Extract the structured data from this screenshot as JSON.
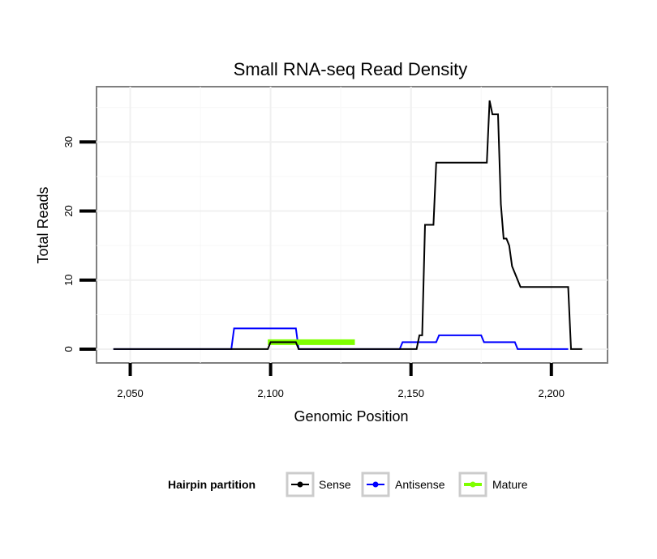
{
  "chart_data": {
    "type": "line",
    "title": "Small RNA-seq Read Density",
    "xlabel": "Genomic Position",
    "ylabel": "Total Reads",
    "xlim": [
      2038,
      2220
    ],
    "ylim": [
      -2,
      38
    ],
    "x_ticks": [
      2050,
      2100,
      2150,
      2200
    ],
    "x_tick_labels": [
      "2,050",
      "2,100",
      "2,150",
      "2,200"
    ],
    "y_ticks": [
      0,
      10,
      20,
      30
    ],
    "y_tick_labels": [
      "0",
      "10",
      "20",
      "30"
    ],
    "grid": true,
    "legend": {
      "title": "Hairpin partition",
      "placement": "bottom"
    },
    "series": [
      {
        "name": "Sense",
        "color": "#000000",
        "points": [
          [
            2044,
            0
          ],
          [
            2099,
            0
          ],
          [
            2100,
            1
          ],
          [
            2109,
            1
          ],
          [
            2110,
            0
          ],
          [
            2152,
            0
          ],
          [
            2153,
            2
          ],
          [
            2154,
            2
          ],
          [
            2155,
            18
          ],
          [
            2158,
            18
          ],
          [
            2159,
            27
          ],
          [
            2177,
            27
          ],
          [
            2178,
            36
          ],
          [
            2179,
            34
          ],
          [
            2181,
            34
          ],
          [
            2182,
            21
          ],
          [
            2183,
            16
          ],
          [
            2184,
            16
          ],
          [
            2185,
            15
          ],
          [
            2186,
            12
          ],
          [
            2189,
            9
          ],
          [
            2206,
            9
          ],
          [
            2207,
            0
          ],
          [
            2211,
            0
          ]
        ]
      },
      {
        "name": "Antisense",
        "color": "#0000ff",
        "points": [
          [
            2044,
            0
          ],
          [
            2086,
            0
          ],
          [
            2087,
            3
          ],
          [
            2109,
            3
          ],
          [
            2110,
            0
          ],
          [
            2146,
            0
          ],
          [
            2147,
            1
          ],
          [
            2154,
            1
          ],
          [
            2155,
            1
          ],
          [
            2159,
            1
          ],
          [
            2160,
            2
          ],
          [
            2175,
            2
          ],
          [
            2176,
            1
          ],
          [
            2187,
            1
          ],
          [
            2188,
            0
          ],
          [
            2206,
            0
          ]
        ]
      },
      {
        "name": "Mature",
        "color": "#7fff00",
        "points": [
          [
            2099,
            1
          ],
          [
            2130,
            1
          ]
        ]
      }
    ]
  }
}
